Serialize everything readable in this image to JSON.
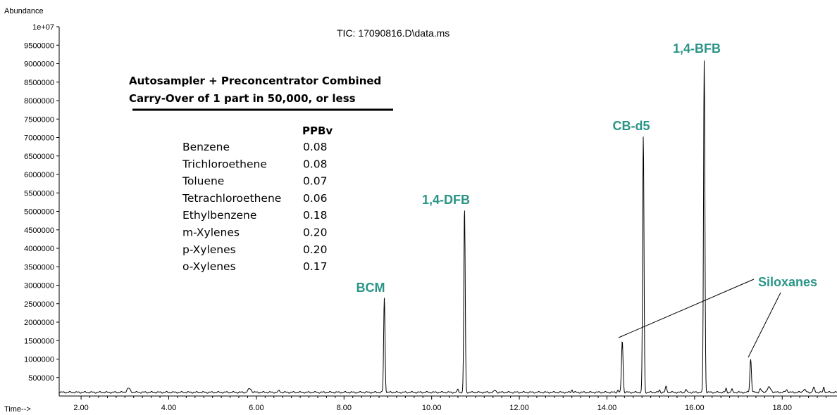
{
  "chart_data": {
    "type": "line",
    "title": "TIC: 17090816.D\\data.ms",
    "ylabel": "Abundance",
    "xlabel": "Time-->",
    "xlim": [
      1.5,
      19.25
    ],
    "ylim": [
      0,
      10000000
    ],
    "x_ticks": [
      "2.00",
      "4.00",
      "6.00",
      "8.00",
      "10.00",
      "12.00",
      "14.00",
      "16.00",
      "18.00"
    ],
    "y_ticks": [
      "500000",
      "1000000",
      "1500000",
      "2000000",
      "2500000",
      "3000000",
      "3500000",
      "4000000",
      "4500000",
      "5000000",
      "5500000",
      "6000000",
      "6500000",
      "7000000",
      "7500000",
      "8000000",
      "8500000",
      "9000000",
      "9500000",
      "1e+07"
    ],
    "series": [
      {
        "baseline": 100000,
        "peaks": [
          {
            "x": 3.08,
            "y": 210000,
            "w": 0.05
          },
          {
            "x": 5.85,
            "y": 200000,
            "w": 0.05
          },
          {
            "x": 6.52,
            "y": 140000,
            "w": 0.03
          },
          {
            "x": 8.92,
            "y": 2650000,
            "w": 0.022
          },
          {
            "x": 10.6,
            "y": 180000,
            "w": 0.02
          },
          {
            "x": 10.75,
            "y": 5100000,
            "w": 0.022
          },
          {
            "x": 11.45,
            "y": 150000,
            "w": 0.03
          },
          {
            "x": 13.2,
            "y": 170000,
            "w": 0.02
          },
          {
            "x": 14.25,
            "y": 160000,
            "w": 0.02
          },
          {
            "x": 14.35,
            "y": 1500000,
            "w": 0.025
          },
          {
            "x": 14.83,
            "y": 7050000,
            "w": 0.022
          },
          {
            "x": 15.2,
            "y": 160000,
            "w": 0.02
          },
          {
            "x": 15.35,
            "y": 250000,
            "w": 0.025
          },
          {
            "x": 15.8,
            "y": 180000,
            "w": 0.02
          },
          {
            "x": 16.22,
            "y": 9100000,
            "w": 0.022
          },
          {
            "x": 16.72,
            "y": 200000,
            "w": 0.02
          },
          {
            "x": 16.85,
            "y": 180000,
            "w": 0.02
          },
          {
            "x": 17.28,
            "y": 1000000,
            "w": 0.025
          },
          {
            "x": 17.5,
            "y": 190000,
            "w": 0.03
          },
          {
            "x": 17.7,
            "y": 230000,
            "w": 0.06
          },
          {
            "x": 18.1,
            "y": 170000,
            "w": 0.03
          },
          {
            "x": 18.5,
            "y": 180000,
            "w": 0.04
          },
          {
            "x": 18.72,
            "y": 220000,
            "w": 0.03
          },
          {
            "x": 18.95,
            "y": 250000,
            "w": 0.02
          }
        ]
      }
    ],
    "peak_labels": [
      {
        "text": "BCM",
        "x": 8.92
      },
      {
        "text": "1,4-DFB",
        "x": 10.75
      },
      {
        "text": "CB-d5",
        "x": 14.83
      },
      {
        "text": "1,4-BFB",
        "x": 16.22
      },
      {
        "text": "Siloxanes",
        "x": 17.28
      }
    ],
    "label_color": "#2a9486"
  },
  "annotation": {
    "title_line1": "Autosampler + Preconcentrator Combined",
    "title_line2": "Carry-Over of 1 part in 50,000, or less",
    "column_header": "PPBv",
    "rows": [
      {
        "compound": "Benzene",
        "ppbv": "0.08"
      },
      {
        "compound": "Trichloroethene",
        "ppbv": "0.08"
      },
      {
        "compound": "Toluene",
        "ppbv": "0.07"
      },
      {
        "compound": "Tetrachloroethene",
        "ppbv": "0.06"
      },
      {
        "compound": "Ethylbenzene",
        "ppbv": "0.18"
      },
      {
        "compound": "m-Xylenes",
        "ppbv": "0.20"
      },
      {
        "compound": "p-Xylenes",
        "ppbv": "0.20"
      },
      {
        "compound": "o-Xylenes",
        "ppbv": "0.17"
      }
    ]
  }
}
